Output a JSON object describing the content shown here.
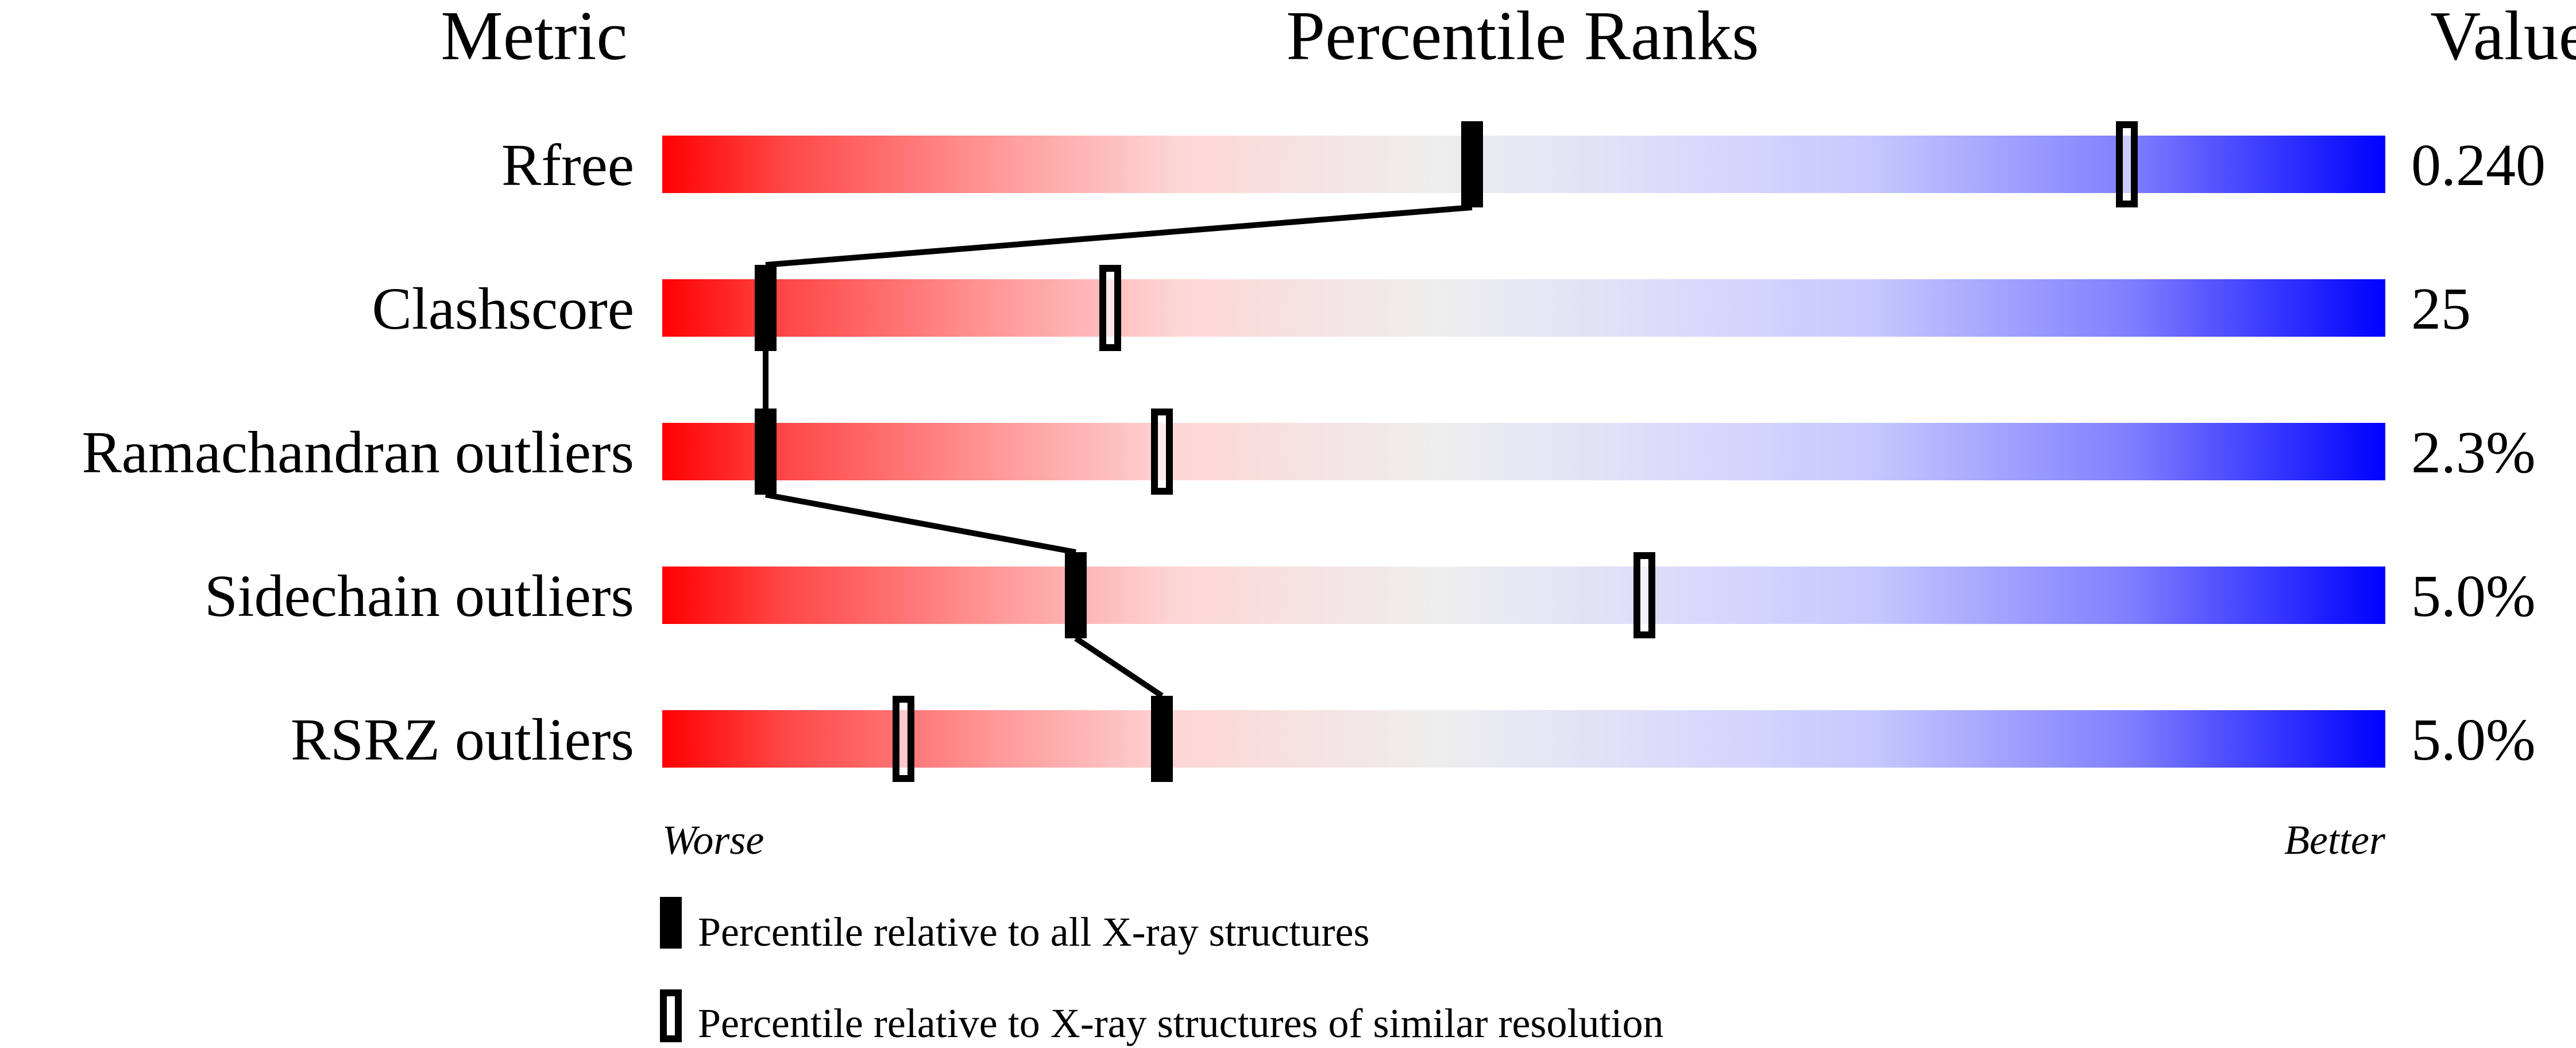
{
  "chart_data": {
    "type": "percentile-slider",
    "headers": {
      "metric": "Metric",
      "ranks": "Percentile Ranks",
      "value": "Value"
    },
    "xlim": [
      0,
      100
    ],
    "scale_labels": {
      "worse": "Worse",
      "better": "Better"
    },
    "gradient_colors": [
      "#ff0000",
      "#eeeeee",
      "#0000ff"
    ],
    "metrics": [
      {
        "name": "Rfree",
        "value": "0.240",
        "percentile_all": 47,
        "percentile_similar": 85
      },
      {
        "name": "Clashscore",
        "value": "25",
        "percentile_all": 6,
        "percentile_similar": 26
      },
      {
        "name": "Ramachandran outliers",
        "value": "2.3%",
        "percentile_all": 6,
        "percentile_similar": 29
      },
      {
        "name": "Sidechain outliers",
        "value": "5.0%",
        "percentile_all": 24,
        "percentile_similar": 57
      },
      {
        "name": "RSRZ outliers",
        "value": "5.0%",
        "percentile_all": 29,
        "percentile_similar": 14
      }
    ],
    "legend": [
      {
        "marker": "filled",
        "label": "Percentile relative to all X-ray structures"
      },
      {
        "marker": "open",
        "label": "Percentile relative to X-ray structures of similar resolution"
      }
    ]
  }
}
